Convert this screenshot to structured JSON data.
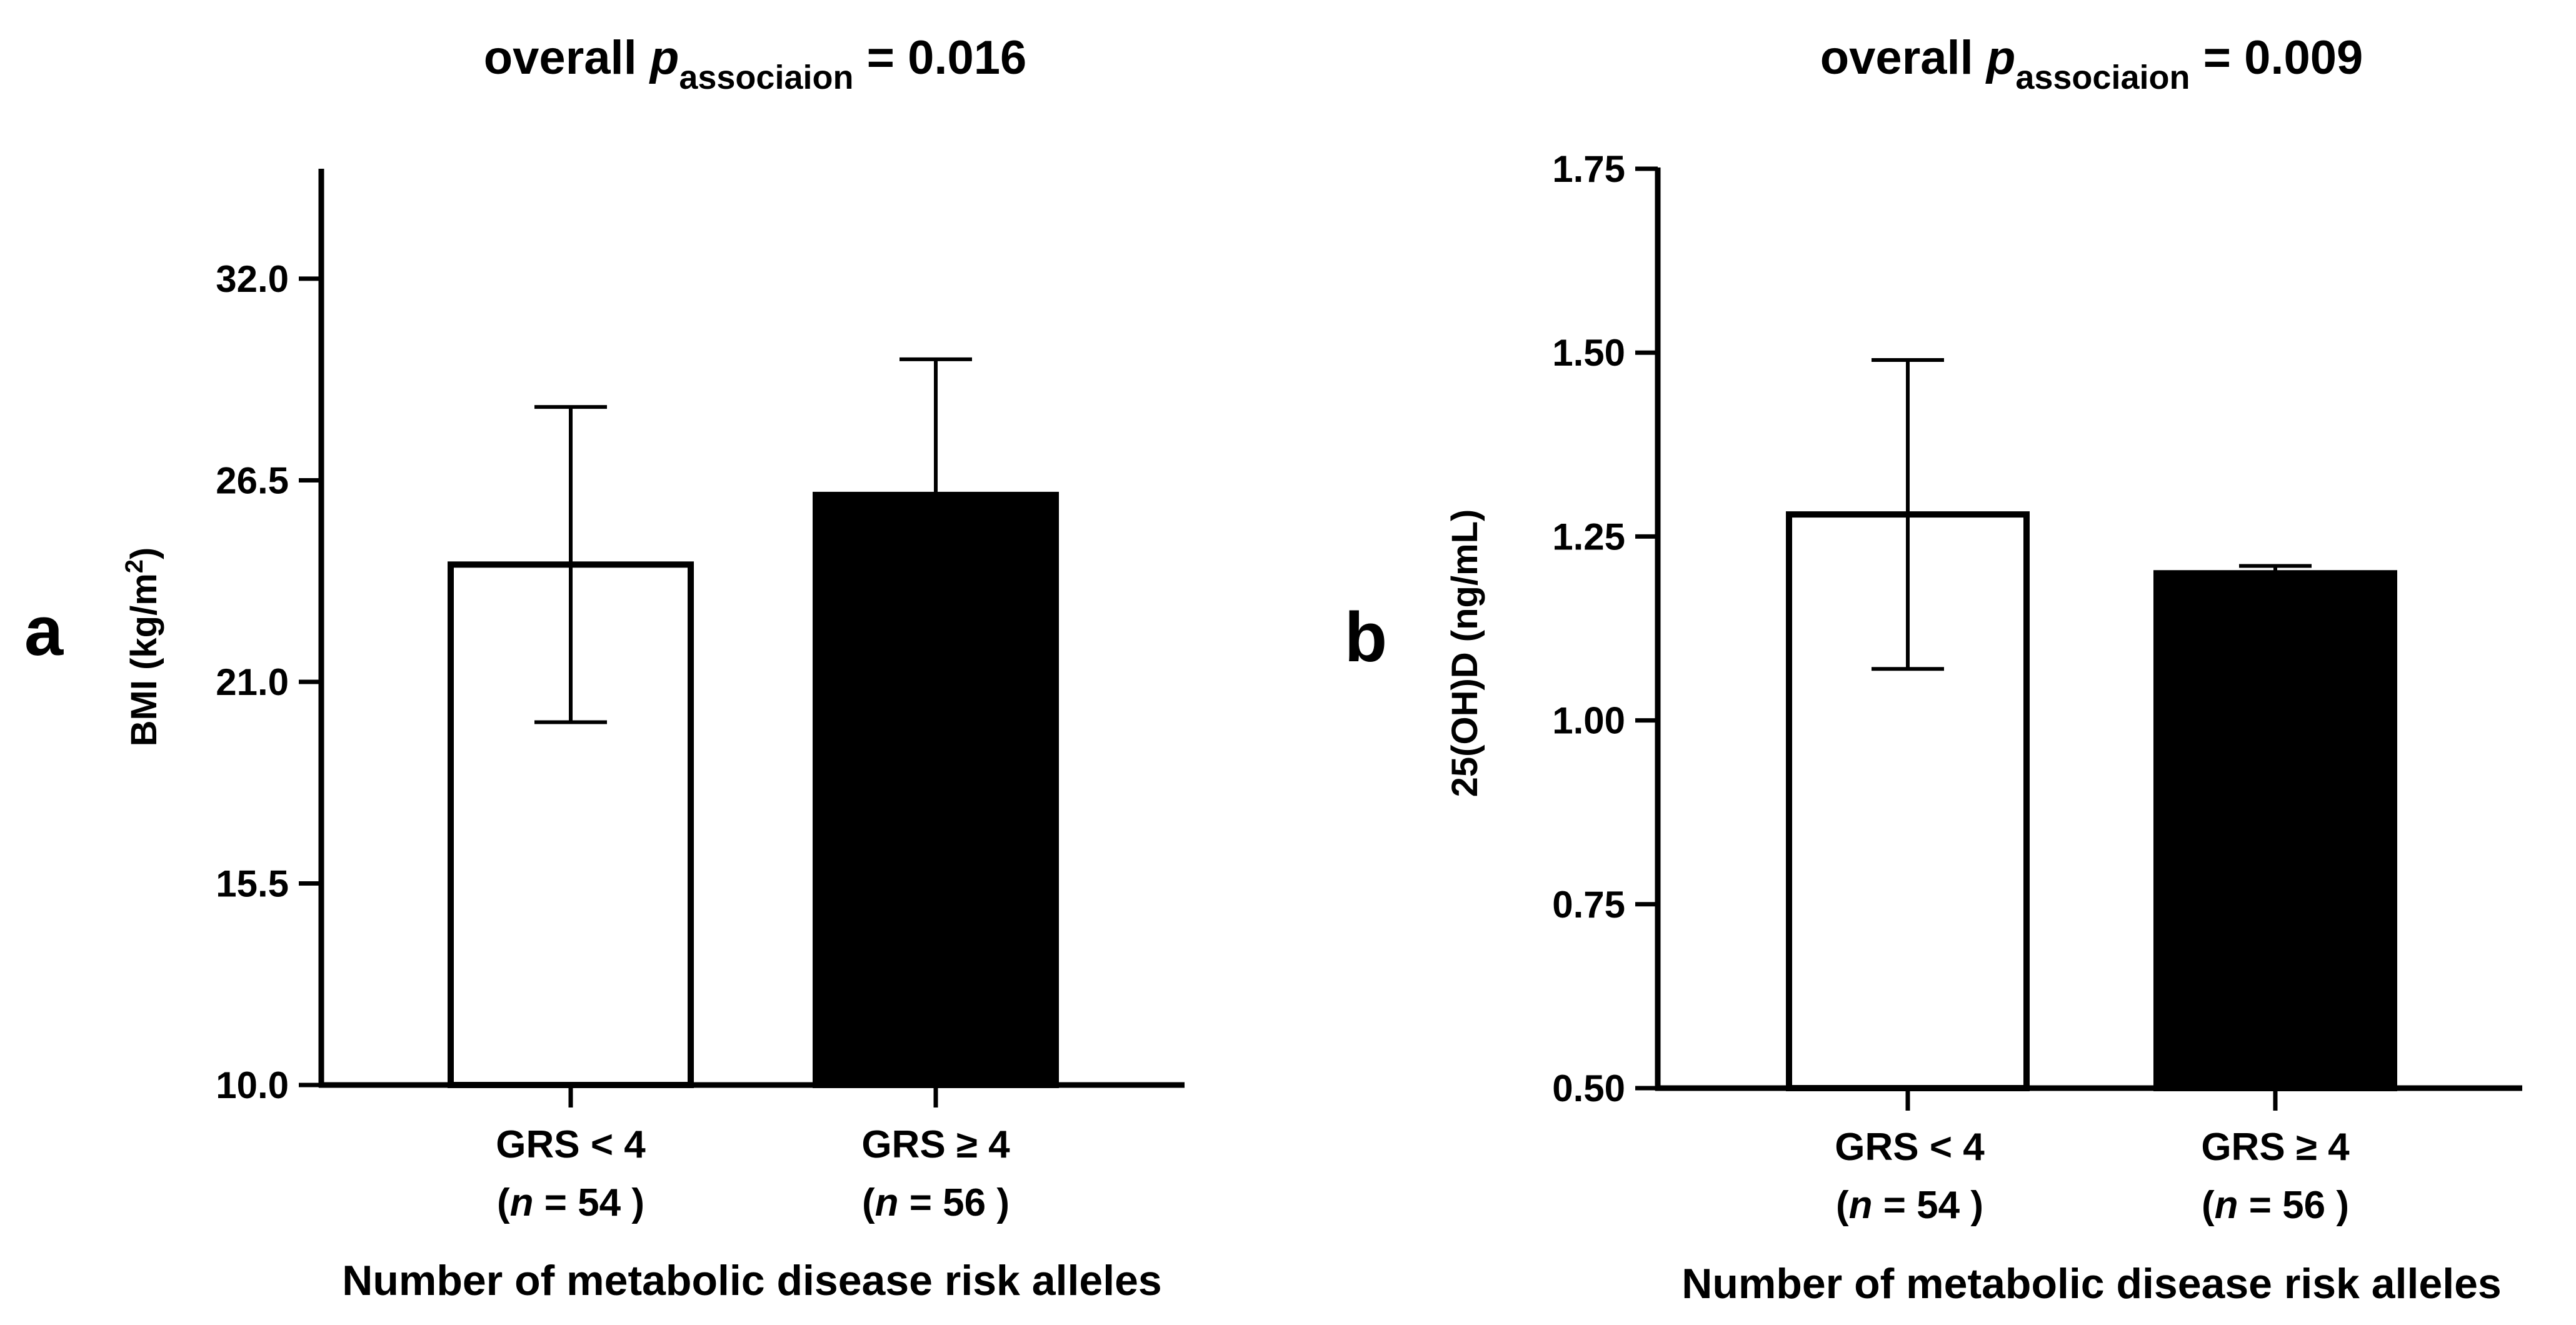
{
  "colors": {
    "ink": "#000000",
    "open_bar": "#ffffff",
    "filled_bar": "#000000",
    "background": "#ffffff"
  },
  "chart_data": [
    {
      "type": "bar",
      "panel_letter": "a",
      "title_prefix": "overall ",
      "title_p": "p",
      "title_subscript": "associaion",
      "title_suffix": " = 0.016",
      "ylabel_main": "BMI (kg/m",
      "ylabel_sup": "2",
      "ylabel_end": ")",
      "xlabel": "Number of metabolic disease risk alleles",
      "ylim": [
        10.0,
        35.0
      ],
      "yticks": [
        10.0,
        15.5,
        21.0,
        26.5,
        32.0
      ],
      "ytick_labels": [
        "10.0",
        "15.5",
        "21.0",
        "26.5",
        "32.0"
      ],
      "categories": [
        "GRS < 4",
        "GRS ≥ 4"
      ],
      "category_n_prefix": [
        "(",
        "("
      ],
      "category_n_symbol": [
        "n",
        "n"
      ],
      "category_n_value": [
        " = 54 )",
        " = 56 )"
      ],
      "values": [
        24.2,
        26.1
      ],
      "error_upper": [
        28.5,
        29.8
      ],
      "error_lower": [
        19.9,
        null
      ],
      "bar_fill": [
        "open",
        "filled"
      ]
    },
    {
      "type": "bar",
      "panel_letter": "b",
      "title_prefix": "overall ",
      "title_p": "p",
      "title_subscript": "associaion",
      "title_suffix": " = 0.009",
      "ylabel_main": "25(OH)D (ng/mL)",
      "ylabel_sup": "",
      "ylabel_end": "",
      "xlabel": "Number of metabolic disease risk alleles",
      "ylim": [
        0.5,
        1.75
      ],
      "yticks": [
        0.5,
        0.75,
        1.0,
        1.25,
        1.5,
        1.75
      ],
      "ytick_labels": [
        "0.50",
        "0.75",
        "1.00",
        "1.25",
        "1.50",
        "1.75"
      ],
      "categories": [
        "GRS < 4",
        "GRS ≥ 4"
      ],
      "category_n_prefix": [
        "(",
        "("
      ],
      "category_n_symbol": [
        "n",
        "n"
      ],
      "category_n_value": [
        " = 54 )",
        " = 56 )"
      ],
      "values": [
        1.28,
        1.2
      ],
      "error_upper": [
        1.49,
        1.21
      ],
      "error_lower": [
        1.07,
        null
      ],
      "bar_fill": [
        "open",
        "filled"
      ]
    }
  ]
}
